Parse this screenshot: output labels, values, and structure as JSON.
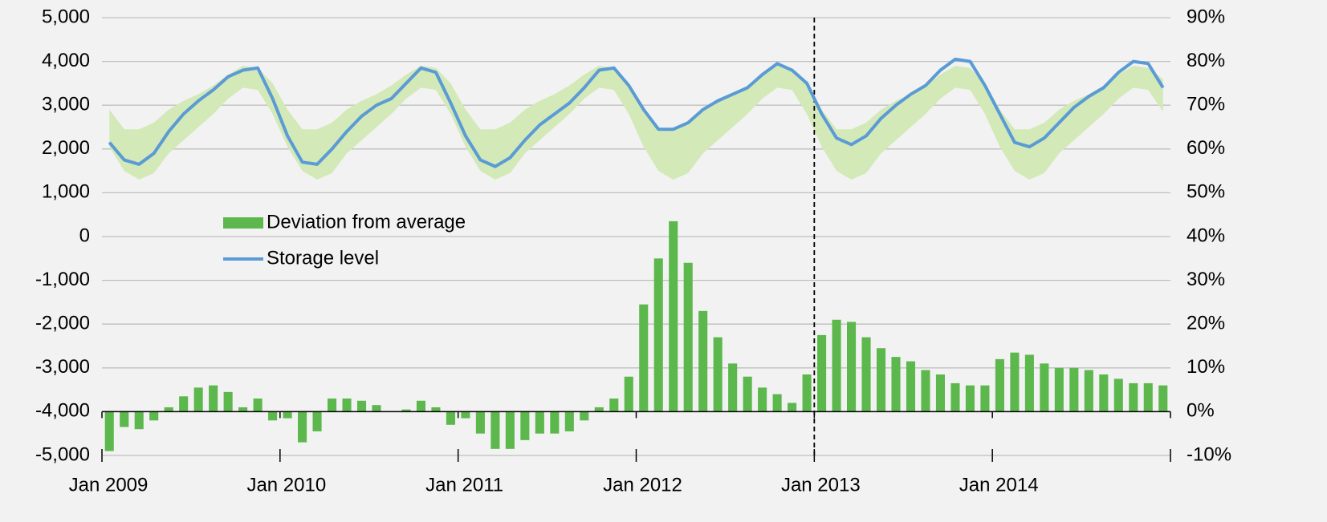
{
  "chart_data": {
    "type": "bar-line-band",
    "categories": [
      "Jan 2009",
      null,
      null,
      null,
      null,
      null,
      null,
      null,
      null,
      null,
      null,
      null,
      "Jan 2010",
      null,
      null,
      null,
      null,
      null,
      null,
      null,
      null,
      null,
      null,
      null,
      "Jan 2011",
      null,
      null,
      null,
      null,
      null,
      null,
      null,
      null,
      null,
      null,
      null,
      "Jan 2012",
      null,
      null,
      null,
      null,
      null,
      null,
      null,
      null,
      null,
      null,
      null,
      "Jan 2013",
      null,
      null,
      null,
      null,
      null,
      null,
      null,
      null,
      null,
      null,
      null,
      "Jan 2014",
      null,
      null,
      null,
      null,
      null,
      null,
      null,
      null,
      null,
      null,
      null
    ],
    "series": [
      {
        "name": "Deviation from average",
        "type": "bar",
        "axis": "y2",
        "color": "#5cb84c",
        "values": [
          -9,
          -3.5,
          -4,
          -2,
          1,
          3.5,
          5.5,
          6,
          4.5,
          1,
          3,
          -2,
          -1.5,
          -7,
          -4.5,
          3,
          3,
          2.5,
          1.5,
          0,
          0.5,
          2.5,
          1,
          -3,
          -1.5,
          -5,
          -8.5,
          -8.5,
          -6.5,
          -5,
          -5,
          -4.5,
          -2,
          1,
          3,
          8,
          24.5,
          35,
          43.5,
          34,
          23,
          17,
          11,
          8,
          5.5,
          4,
          2,
          8.5,
          17.5,
          21,
          20.5,
          17,
          14.5,
          12.5,
          11.5,
          9.5,
          8.5,
          6.5,
          6,
          6,
          12,
          13.5,
          13,
          11,
          10,
          10,
          9.5,
          8.5,
          7.5,
          6.5,
          6.5,
          6
        ]
      },
      {
        "name": "Storage level",
        "type": "line",
        "axis": "y",
        "color": "#5b9bd5",
        "values": [
          2150,
          1750,
          1650,
          1900,
          2400,
          2800,
          3100,
          3350,
          3650,
          3800,
          3850,
          3150,
          2300,
          1700,
          1650,
          2000,
          2400,
          2750,
          3000,
          3150,
          3500,
          3850,
          3750,
          3050,
          2300,
          1750,
          1600,
          1800,
          2200,
          2550,
          2800,
          3050,
          3400,
          3800,
          3850,
          3450,
          2900,
          2450,
          2450,
          2600,
          2900,
          3100,
          3250,
          3400,
          3700,
          3950,
          3800,
          3500,
          2800,
          2250,
          2100,
          2300,
          2700,
          3000,
          3250,
          3450,
          3800,
          4050,
          4000,
          3450,
          2800,
          2150,
          2050,
          2250,
          2600,
          2950,
          3200,
          3400,
          3750,
          4000,
          3950,
          3400
        ]
      }
    ],
    "band": {
      "axis": "y",
      "color": "#d3e9b8",
      "low": [
        2050,
        1500,
        1300,
        1450,
        1900,
        2200,
        2500,
        2800,
        3150,
        3400,
        3350,
        2800,
        2050,
        1500,
        1300,
        1450,
        1900,
        2200,
        2500,
        2800,
        3150,
        3400,
        3350,
        2800,
        2050,
        1500,
        1300,
        1450,
        1900,
        2200,
        2500,
        2800,
        3150,
        3400,
        3350,
        2800,
        2050,
        1500,
        1300,
        1450,
        1900,
        2200,
        2500,
        2800,
        3150,
        3400,
        3350,
        2800,
        2050,
        1500,
        1300,
        1450,
        1900,
        2200,
        2500,
        2800,
        3150,
        3400,
        3350,
        2800,
        2050,
        1500,
        1300,
        1450,
        1900,
        2200,
        2500,
        2800,
        3150,
        3400,
        3350,
        2850
      ],
      "high": [
        2900,
        2450,
        2450,
        2600,
        2900,
        3100,
        3250,
        3450,
        3700,
        3900,
        3850,
        3500,
        2900,
        2450,
        2450,
        2600,
        2900,
        3100,
        3250,
        3450,
        3700,
        3900,
        3850,
        3500,
        2900,
        2450,
        2450,
        2600,
        2900,
        3100,
        3250,
        3450,
        3700,
        3900,
        3850,
        3500,
        2900,
        2450,
        2450,
        2600,
        2900,
        3100,
        3250,
        3450,
        3700,
        3900,
        3850,
        3500,
        2900,
        2450,
        2450,
        2600,
        2900,
        3100,
        3250,
        3450,
        3700,
        3900,
        3850,
        3500,
        2900,
        2450,
        2450,
        2600,
        2900,
        3100,
        3250,
        3450,
        3700,
        3900,
        3850,
        3600
      ]
    },
    "vline_at": "Jan 2013",
    "ylim": [
      -5000,
      5000
    ],
    "yticks": [
      {
        "value": -5000,
        "label": "-5,000"
      },
      {
        "value": -4000,
        "label": "-4,000"
      },
      {
        "value": -3000,
        "label": "-3,000"
      },
      {
        "value": -2000,
        "label": "-2,000"
      },
      {
        "value": -1000,
        "label": "-1,000"
      },
      0,
      {
        "value": 1000,
        "label": "1,000"
      },
      {
        "value": 2000,
        "label": "2,000"
      },
      {
        "value": 3000,
        "label": "3,000"
      },
      {
        "value": 4000,
        "label": "4,000"
      },
      {
        "value": 5000,
        "label": "5,000"
      }
    ],
    "y2lim": [
      -10,
      90
    ],
    "y2ticks": [
      {
        "value": -10,
        "label": "-10%"
      },
      {
        "value": 0,
        "label": "0%"
      },
      {
        "value": 10,
        "label": "10%"
      },
      {
        "value": 20,
        "label": "20%"
      },
      {
        "value": 30,
        "label": "30%"
      },
      {
        "value": 40,
        "label": "40%"
      },
      {
        "value": 50,
        "label": "50%"
      },
      {
        "value": 60,
        "label": "60%"
      },
      {
        "value": 70,
        "label": "70%"
      },
      {
        "value": 80,
        "label": "80%"
      },
      {
        "value": 90,
        "label": "90%"
      }
    ],
    "grid": true
  }
}
